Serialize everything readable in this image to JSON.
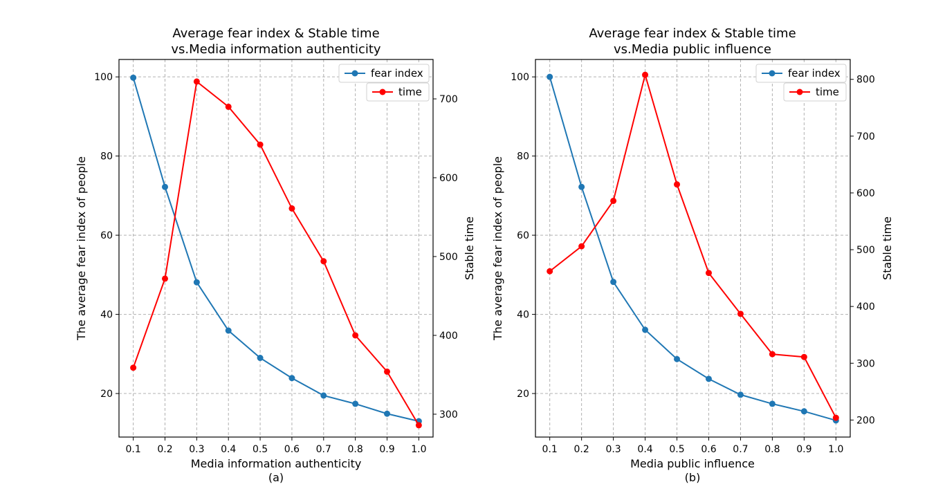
{
  "chart_data": [
    {
      "type": "line",
      "title": "Average fear index & Stable time",
      "subtitle": "vs.Media information authenticity",
      "xlabel": "Media information authenticity",
      "panel_label": "(a)",
      "ylabel_left": "The average fear index of people",
      "ylabel_right": "Stable time",
      "x": [
        0.1,
        0.2,
        0.3,
        0.4,
        0.5,
        0.6,
        0.7,
        0.8,
        0.9,
        1.0
      ],
      "xticks": [
        "0.1",
        "0.2",
        "0.3",
        "0.4",
        "0.5",
        "0.6",
        "0.7",
        "0.8",
        "0.9",
        "1.0"
      ],
      "ylim_left": [
        9,
        104.4
      ],
      "yticks_left": [
        20,
        40,
        60,
        80,
        100
      ],
      "ylim_right": [
        271,
        750
      ],
      "yticks_right": [
        300,
        400,
        500,
        600,
        700
      ],
      "grid": true,
      "legend_position": "top-right",
      "series": [
        {
          "name": "fear index",
          "axis": "left",
          "color": "#1f77b4",
          "values": [
            99.8,
            72.2,
            48.1,
            35.9,
            29.0,
            23.9,
            19.5,
            17.4,
            14.9,
            13.0
          ]
        },
        {
          "name": "time",
          "axis": "right",
          "color": "#ff0000",
          "values": [
            359,
            472,
            722,
            690,
            642,
            561,
            494,
            400,
            354,
            286
          ]
        }
      ]
    },
    {
      "type": "line",
      "title": "Average fear index & Stable time",
      "subtitle": "vs.Media public influence",
      "xlabel": "Media public influence",
      "panel_label": "(b)",
      "ylabel_left": "The average fear index of people",
      "ylabel_right": "Stable time",
      "x": [
        0.1,
        0.2,
        0.3,
        0.4,
        0.5,
        0.6,
        0.7,
        0.8,
        0.9,
        1.0
      ],
      "xticks": [
        "0.1",
        "0.2",
        "0.3",
        "0.4",
        "0.5",
        "0.6",
        "0.7",
        "0.8",
        "0.9",
        "1.0"
      ],
      "ylim_left": [
        9,
        104.4
      ],
      "yticks_left": [
        20,
        40,
        60,
        80,
        100
      ],
      "ylim_right": [
        170,
        835
      ],
      "yticks_right": [
        200,
        300,
        400,
        500,
        600,
        700,
        800
      ],
      "grid": true,
      "legend_position": "top-right",
      "series": [
        {
          "name": "fear index",
          "axis": "left",
          "color": "#1f77b4",
          "values": [
            100.0,
            72.2,
            48.2,
            36.1,
            28.7,
            23.7,
            19.7,
            17.4,
            15.5,
            13.2
          ]
        },
        {
          "name": "time",
          "axis": "right",
          "color": "#ff0000",
          "values": [
            462,
            506,
            586,
            808,
            615,
            459,
            387,
            316,
            311,
            204
          ]
        }
      ]
    }
  ]
}
